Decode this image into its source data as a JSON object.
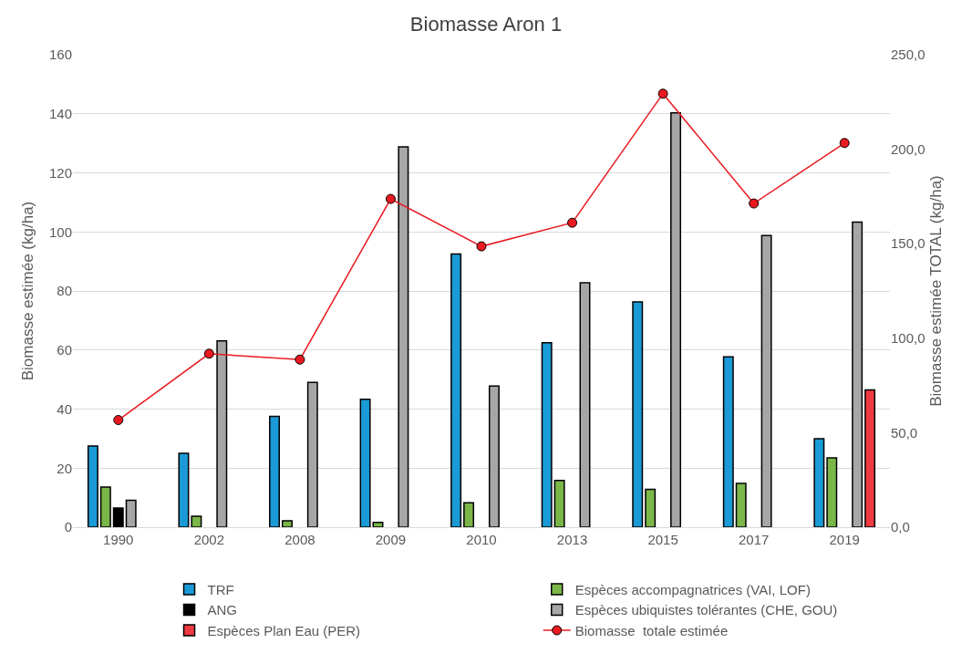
{
  "chart_data": {
    "type": "bar",
    "title": "Biomasse Aron 1",
    "ylabel": "Biomasse estimée (kg/ha)",
    "y2label": "Biomasse estimée TOTAL (kg/ha)",
    "categories": [
      "1990",
      "2002",
      "2008",
      "2009",
      "2010",
      "2013",
      "2015",
      "2017",
      "2019"
    ],
    "series": [
      {
        "name": "TRF",
        "color": "#1a9ad6",
        "values": [
          27.5,
          25,
          37.5,
          43.3,
          92.5,
          62.5,
          76.3,
          57.7,
          30
        ]
      },
      {
        "name": "Espèces accompagnatrices (VAI, LOF)",
        "color": "#7ab648",
        "values": [
          13.6,
          3.7,
          2.2,
          1.6,
          8.3,
          15.8,
          12.8,
          14.8,
          23.5
        ]
      },
      {
        "name": "ANG",
        "color": "#000000",
        "values": [
          6.5,
          null,
          null,
          null,
          null,
          null,
          null,
          null,
          null
        ]
      },
      {
        "name": "Espèces ubiquistes tolérantes (CHE, GOU)",
        "color": "#a6a6a6",
        "values": [
          9.1,
          63.1,
          49,
          128.8,
          47.8,
          82.8,
          140.3,
          98.8,
          103.3
        ]
      },
      {
        "name": "Espèces Plan Eau (PER)",
        "color": "#ee3a42",
        "values": [
          null,
          null,
          null,
          null,
          null,
          null,
          null,
          null,
          46.5
        ]
      },
      {
        "name": "Biomasse  totale estimée",
        "color": "#e8191f",
        "type": "line",
        "axis": "y2",
        "marker": "circle",
        "values": [
          56.7,
          91.8,
          88.7,
          173.7,
          148.6,
          161.1,
          229.4,
          171.3,
          203.3
        ]
      }
    ],
    "ylim": [
      0,
      160
    ],
    "yticks": [
      0,
      20,
      40,
      60,
      80,
      100,
      120,
      140,
      160
    ],
    "y2lim": [
      0,
      250
    ],
    "y2ticks": [
      {
        "value": 0,
        "label": "0,0"
      },
      {
        "value": 50,
        "label": "50,0"
      },
      {
        "value": 100,
        "label": "100,0"
      },
      {
        "value": 150,
        "label": "150,0"
      },
      {
        "value": 200,
        "label": "200,0"
      },
      {
        "value": 250,
        "label": "250,0"
      }
    ],
    "grid": "y",
    "legend": "bottom"
  }
}
